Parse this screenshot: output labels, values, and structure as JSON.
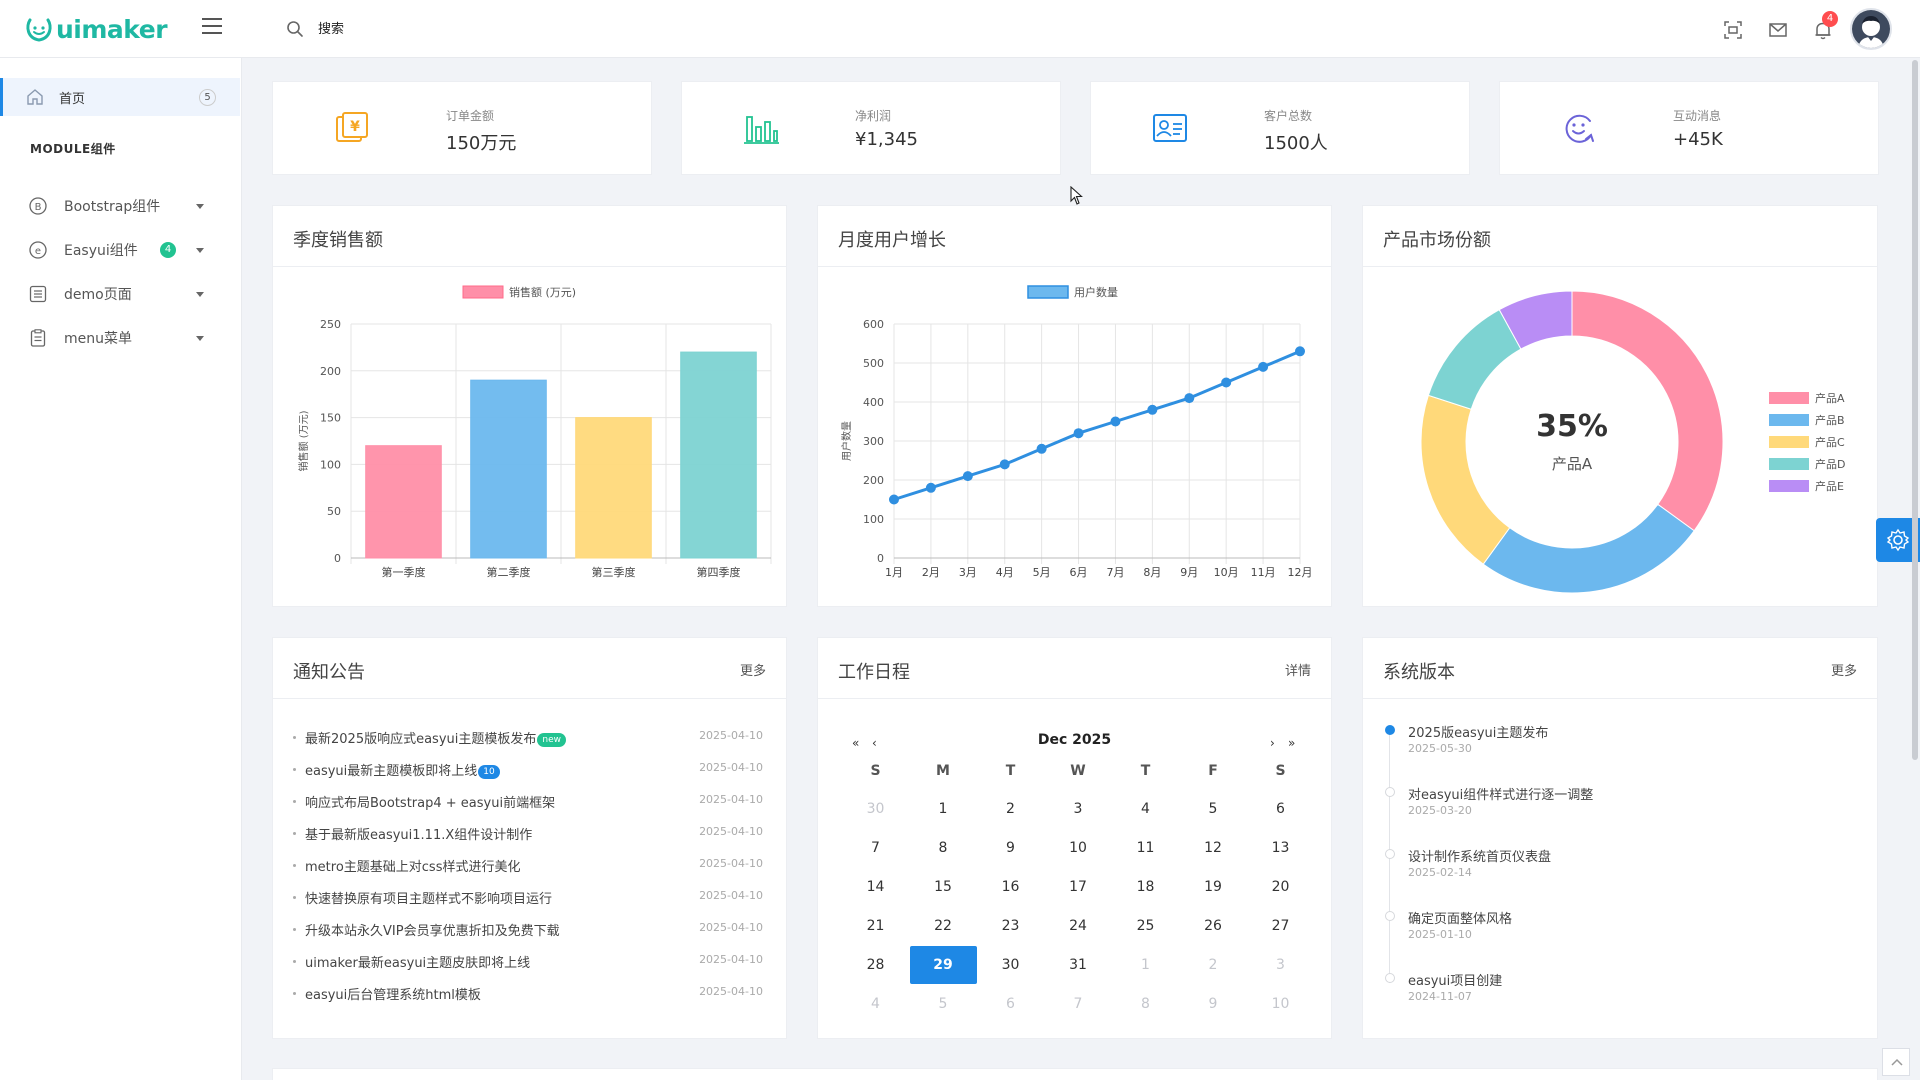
{
  "header": {
    "logo_text": "uimaker",
    "search_placeholder": "搜索",
    "notification_count": "4"
  },
  "sidebar": {
    "home_label": "首页",
    "home_count": "5",
    "section_label": "MODULE组件",
    "items": [
      {
        "label": "Bootstrap组件",
        "icon": "bootstrap-icon"
      },
      {
        "label": "Easyui组件",
        "icon": "easyui-icon",
        "badge": "4"
      },
      {
        "label": "demo页面",
        "icon": "list-icon"
      },
      {
        "label": "menu菜单",
        "icon": "clipboard-icon"
      }
    ]
  },
  "stats": [
    {
      "label": "订单金额",
      "value": "150万元",
      "icon": "money-icon",
      "color": "#f5a623"
    },
    {
      "label": "净利润",
      "value": "¥1,345",
      "icon": "bar-chart-icon",
      "color": "#22c391"
    },
    {
      "label": "客户总数",
      "value": "1500人",
      "icon": "contact-card-icon",
      "color": "#1e88e5"
    },
    {
      "label": "互动消息",
      "value": "+45K",
      "icon": "smile-refresh-icon",
      "color": "#6b63d8"
    }
  ],
  "panels": {
    "sales_title": "季度销售额",
    "users_title": "月度用户增长",
    "share_title": "产品市场份额",
    "notice_title": "通知公告",
    "notice_more": "更多",
    "schedule_title": "工作日程",
    "schedule_more": "详情",
    "version_title": "系统版本",
    "version_more": "更多"
  },
  "chart_data": [
    {
      "type": "bar",
      "legend": "销售额 (万元)",
      "ylabel": "销售额 (万元)",
      "categories": [
        "第一季度",
        "第二季度",
        "第三季度",
        "第四季度"
      ],
      "values": [
        120,
        190,
        150,
        220
      ],
      "colors": [
        "#ff8fa8",
        "#6cb8ee",
        "#ffd97a",
        "#7dd3d2"
      ],
      "ylim": [
        0,
        250
      ],
      "yticks": [
        0,
        50,
        100,
        150,
        200,
        250
      ],
      "grid": true,
      "legend_position": "top"
    },
    {
      "type": "line",
      "legend": "用户数量",
      "ylabel": "用户数量",
      "categories": [
        "1月",
        "2月",
        "3月",
        "4月",
        "5月",
        "6月",
        "7月",
        "8月",
        "9月",
        "10月",
        "11月",
        "12月"
      ],
      "values": [
        150,
        180,
        210,
        240,
        280,
        320,
        350,
        380,
        410,
        450,
        490,
        530
      ],
      "color": "#2f8fe0",
      "ylim": [
        0,
        600
      ],
      "yticks": [
        0,
        100,
        200,
        300,
        400,
        500,
        600
      ],
      "grid": true,
      "legend_position": "top"
    },
    {
      "type": "pie",
      "categories": [
        "产品A",
        "产品B",
        "产品C",
        "产品D",
        "产品E"
      ],
      "values": [
        35,
        25,
        20,
        12,
        8
      ],
      "colors": [
        "#ff8fa8",
        "#6cb8ee",
        "#ffd97a",
        "#7dd3d2",
        "#b98df5"
      ],
      "center_value": "35%",
      "center_label": "产品A",
      "legend_position": "right"
    }
  ],
  "notices": [
    {
      "text": "最新2025版响应式easyui主题模板发布",
      "tag": "new",
      "tag_type": "new",
      "date": "2025-04-10"
    },
    {
      "text": "easyui最新主题模板即将上线",
      "tag": "10",
      "tag_type": "num",
      "date": "2025-04-10"
    },
    {
      "text": "响应式布局Bootstrap4 + easyui前端框架",
      "date": "2025-04-10"
    },
    {
      "text": "基于最新版easyui1.11.X组件设计制作",
      "date": "2025-04-10"
    },
    {
      "text": "metro主题基础上对css样式进行美化",
      "date": "2025-04-10"
    },
    {
      "text": "快速替换原有项目主题样式不影响项目运行",
      "date": "2025-04-10"
    },
    {
      "text": "升级本站永久VIP会员享优惠折扣及免费下载",
      "date": "2025-04-10"
    },
    {
      "text": "uimaker最新easyui主题皮肤即将上线",
      "date": "2025-04-10"
    },
    {
      "text": "easyui后台管理系统html模板",
      "date": "2025-04-10"
    }
  ],
  "calendar": {
    "month_title": "Dec 2025",
    "nav_prev_year": "«",
    "nav_prev": "‹",
    "nav_next": "›",
    "nav_next_year": "»",
    "weekdays": [
      "S",
      "M",
      "T",
      "W",
      "T",
      "F",
      "S"
    ],
    "weeks": [
      [
        "30",
        "1",
        "2",
        "3",
        "4",
        "5",
        "6"
      ],
      [
        "7",
        "8",
        "9",
        "10",
        "11",
        "12",
        "13"
      ],
      [
        "14",
        "15",
        "16",
        "17",
        "18",
        "19",
        "20"
      ],
      [
        "21",
        "22",
        "23",
        "24",
        "25",
        "26",
        "27"
      ],
      [
        "28",
        "29",
        "30",
        "31",
        "1",
        "2",
        "3"
      ],
      [
        "4",
        "5",
        "6",
        "7",
        "8",
        "9",
        "10"
      ]
    ],
    "selected": "29"
  },
  "versions": [
    {
      "title": "2025版easyui主题发布",
      "date": "2025-05-30",
      "active": true
    },
    {
      "title": "对easyui组件样式进行逐一调整",
      "date": "2025-03-20"
    },
    {
      "title": "设计制作系统首页仪表盘",
      "date": "2025-02-14"
    },
    {
      "title": "确定页面整体风格",
      "date": "2025-01-10"
    },
    {
      "title": "easyui项目创建",
      "date": "2024-11-07"
    }
  ]
}
